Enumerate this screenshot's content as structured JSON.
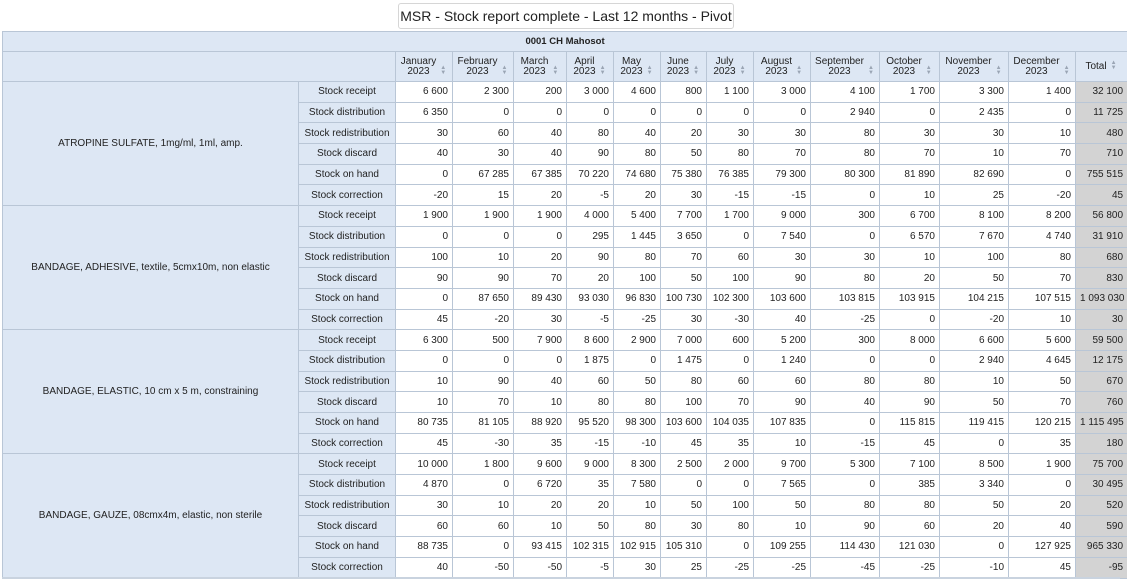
{
  "title": "MSR - Stock report complete - Last 12 months - Pivot table",
  "location": "0001 CH Mahosot",
  "months": [
    {
      "name": "January",
      "year": "2023"
    },
    {
      "name": "February",
      "year": "2023"
    },
    {
      "name": "March",
      "year": "2023"
    },
    {
      "name": "April",
      "year": "2023"
    },
    {
      "name": "May",
      "year": "2023"
    },
    {
      "name": "June",
      "year": "2023"
    },
    {
      "name": "July",
      "year": "2023"
    },
    {
      "name": "August",
      "year": "2023"
    },
    {
      "name": "September",
      "year": "2023"
    },
    {
      "name": "October",
      "year": "2023"
    },
    {
      "name": "November",
      "year": "2023"
    },
    {
      "name": "December",
      "year": "2023"
    }
  ],
  "total_label": "Total",
  "icons": {
    "sort": "sort-icon"
  },
  "products": [
    {
      "name": "ATROPINE SULFATE, 1mg/ml, 1ml, amp.",
      "rows": [
        {
          "metric": "Stock receipt",
          "values": [
            "6 600",
            "2 300",
            "200",
            "3 000",
            "4 600",
            "800",
            "1 100",
            "3 000",
            "4 100",
            "1 700",
            "3 300",
            "1 400"
          ],
          "total": "32 100"
        },
        {
          "metric": "Stock distribution",
          "values": [
            "6 350",
            "0",
            "0",
            "0",
            "0",
            "0",
            "0",
            "0",
            "2 940",
            "0",
            "2 435",
            "0"
          ],
          "total": "11 725"
        },
        {
          "metric": "Stock redistribution",
          "values": [
            "30",
            "60",
            "40",
            "80",
            "40",
            "20",
            "30",
            "30",
            "80",
            "30",
            "30",
            "10"
          ],
          "total": "480"
        },
        {
          "metric": "Stock discard",
          "values": [
            "40",
            "30",
            "40",
            "90",
            "80",
            "50",
            "80",
            "70",
            "80",
            "70",
            "10",
            "70"
          ],
          "total": "710"
        },
        {
          "metric": "Stock on hand",
          "values": [
            "0",
            "67 285",
            "67 385",
            "70 220",
            "74 680",
            "75 380",
            "76 385",
            "79 300",
            "80 300",
            "81 890",
            "82 690",
            "0"
          ],
          "total": "755 515"
        },
        {
          "metric": "Stock correction",
          "values": [
            "-20",
            "15",
            "20",
            "-5",
            "20",
            "30",
            "-15",
            "-15",
            "0",
            "10",
            "25",
            "-20"
          ],
          "total": "45"
        }
      ]
    },
    {
      "name": "BANDAGE, ADHESIVE, textile, 5cmx10m, non elastic",
      "rows": [
        {
          "metric": "Stock receipt",
          "values": [
            "1 900",
            "1 900",
            "1 900",
            "4 000",
            "5 400",
            "7 700",
            "1 700",
            "9 000",
            "300",
            "6 700",
            "8 100",
            "8 200"
          ],
          "total": "56 800"
        },
        {
          "metric": "Stock distribution",
          "values": [
            "0",
            "0",
            "0",
            "295",
            "1 445",
            "3 650",
            "0",
            "7 540",
            "0",
            "6 570",
            "7 670",
            "4 740"
          ],
          "total": "31 910"
        },
        {
          "metric": "Stock redistribution",
          "values": [
            "100",
            "10",
            "20",
            "90",
            "80",
            "70",
            "60",
            "30",
            "30",
            "10",
            "100",
            "80"
          ],
          "total": "680"
        },
        {
          "metric": "Stock discard",
          "values": [
            "90",
            "90",
            "70",
            "20",
            "100",
            "50",
            "100",
            "90",
            "80",
            "20",
            "50",
            "70"
          ],
          "total": "830"
        },
        {
          "metric": "Stock on hand",
          "values": [
            "0",
            "87 650",
            "89 430",
            "93 030",
            "96 830",
            "100 730",
            "102 300",
            "103 600",
            "103 815",
            "103 915",
            "104 215",
            "107 515"
          ],
          "total": "1 093 030"
        },
        {
          "metric": "Stock correction",
          "values": [
            "45",
            "-20",
            "30",
            "-5",
            "-25",
            "30",
            "-30",
            "40",
            "-25",
            "0",
            "-20",
            "10"
          ],
          "total": "30"
        }
      ]
    },
    {
      "name": "BANDAGE, ELASTIC, 10 cm x 5 m, constraining",
      "rows": [
        {
          "metric": "Stock receipt",
          "values": [
            "6 300",
            "500",
            "7 900",
            "8 600",
            "2 900",
            "7 000",
            "600",
            "5 200",
            "300",
            "8 000",
            "6 600",
            "5 600"
          ],
          "total": "59 500"
        },
        {
          "metric": "Stock distribution",
          "values": [
            "0",
            "0",
            "0",
            "1 875",
            "0",
            "1 475",
            "0",
            "1 240",
            "0",
            "0",
            "2 940",
            "4 645"
          ],
          "total": "12 175"
        },
        {
          "metric": "Stock redistribution",
          "values": [
            "10",
            "90",
            "40",
            "60",
            "50",
            "80",
            "60",
            "60",
            "80",
            "80",
            "10",
            "50"
          ],
          "total": "670"
        },
        {
          "metric": "Stock discard",
          "values": [
            "10",
            "70",
            "10",
            "80",
            "80",
            "100",
            "70",
            "90",
            "40",
            "90",
            "50",
            "70"
          ],
          "total": "760"
        },
        {
          "metric": "Stock on hand",
          "values": [
            "80 735",
            "81 105",
            "88 920",
            "95 520",
            "98 300",
            "103 600",
            "104 035",
            "107 835",
            "0",
            "115 815",
            "119 415",
            "120 215"
          ],
          "total": "1 115 495"
        },
        {
          "metric": "Stock correction",
          "values": [
            "45",
            "-30",
            "35",
            "-15",
            "-10",
            "45",
            "35",
            "10",
            "-15",
            "45",
            "0",
            "35"
          ],
          "total": "180"
        }
      ]
    },
    {
      "name": "BANDAGE, GAUZE, 08cmx4m, elastic, non sterile",
      "rows": [
        {
          "metric": "Stock receipt",
          "values": [
            "10 000",
            "1 800",
            "9 600",
            "9 000",
            "8 300",
            "2 500",
            "2 000",
            "9 700",
            "5 300",
            "7 100",
            "8 500",
            "1 900"
          ],
          "total": "75 700"
        },
        {
          "metric": "Stock distribution",
          "values": [
            "4 870",
            "0",
            "6 720",
            "35",
            "7 580",
            "0",
            "0",
            "7 565",
            "0",
            "385",
            "3 340",
            "0"
          ],
          "total": "30 495"
        },
        {
          "metric": "Stock redistribution",
          "values": [
            "30",
            "10",
            "20",
            "20",
            "10",
            "50",
            "100",
            "50",
            "80",
            "80",
            "50",
            "20"
          ],
          "total": "520"
        },
        {
          "metric": "Stock discard",
          "values": [
            "60",
            "60",
            "10",
            "50",
            "80",
            "30",
            "80",
            "10",
            "90",
            "60",
            "20",
            "40"
          ],
          "total": "590"
        },
        {
          "metric": "Stock on hand",
          "values": [
            "88 735",
            "0",
            "93 415",
            "102 315",
            "102 915",
            "105 310",
            "0",
            "109 255",
            "114 430",
            "121 030",
            "0",
            "127 925"
          ],
          "total": "965 330"
        },
        {
          "metric": "Stock correction",
          "values": [
            "40",
            "-50",
            "-50",
            "-5",
            "30",
            "25",
            "-25",
            "-25",
            "-45",
            "-25",
            "-10",
            "45"
          ],
          "total": "-95"
        }
      ]
    }
  ]
}
